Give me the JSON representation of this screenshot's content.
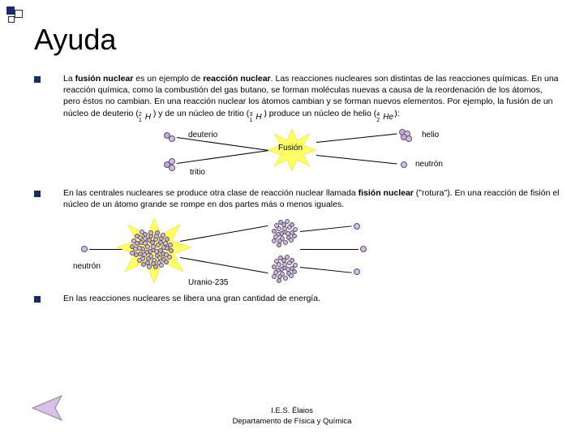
{
  "title": "Ayuda",
  "para1": {
    "seg1": "La ",
    "b1": "fusión nuclear",
    "seg2": " es un ejemplo de ",
    "b2": "reacción nuclear",
    "seg3": ". Las reacciones nucleares son distintas de las reacciones químicas. En una reacción química, como la combustión del gas butano, se forman moléculas nuevas a causa de la reordenación de los átomos, pero éstos no cambian. En una reacción nuclear los átomos cambian y se forman nuevos elementos. Por ejemplo, la fusión de un núcleo de deuterio (",
    "seg4": ") y de un núcleo de tritio (",
    "seg5": ") produce un núcleo de helio (",
    "seg6": "):"
  },
  "isotopes": {
    "deuterio": {
      "a": "2",
      "z": "1",
      "sym": "H"
    },
    "tritio": {
      "a": "3",
      "z": "1",
      "sym": "H"
    },
    "helio": {
      "a": "4",
      "z": "2",
      "sym": "He"
    }
  },
  "fusion_labels": {
    "deuterio": "deuterio",
    "tritio": "tritio",
    "fusion": "Fusión",
    "helio": "helio",
    "neutron": "neutrón"
  },
  "para2": {
    "seg1": "En las centrales nucleares se produce otra clase de reacción nuclear llamada",
    "b1": " fisión nuclear",
    "seg2": " (\"rotura\"). En una reacción de fisión el núcleo de un átomo grande se rompe en dos partes más o menos iguales."
  },
  "fission_labels": {
    "neutron": "neutrón",
    "uranio": "Uranio-235"
  },
  "para3": "En las reacciones nucleares se libera una gran cantidad de energía.",
  "footer": {
    "line1": "I.E.S. Élaios",
    "line2": "Departamento de Física y Química"
  },
  "colors": {
    "accent": "#1a2a6c",
    "proton": "#c9a5e8",
    "neutron": "#d8b8f0",
    "star_fill": "#ffff66",
    "star_stroke": "#e6d800",
    "arrow_fill": "#d8c0e8",
    "arrow_stroke": "#888888"
  }
}
